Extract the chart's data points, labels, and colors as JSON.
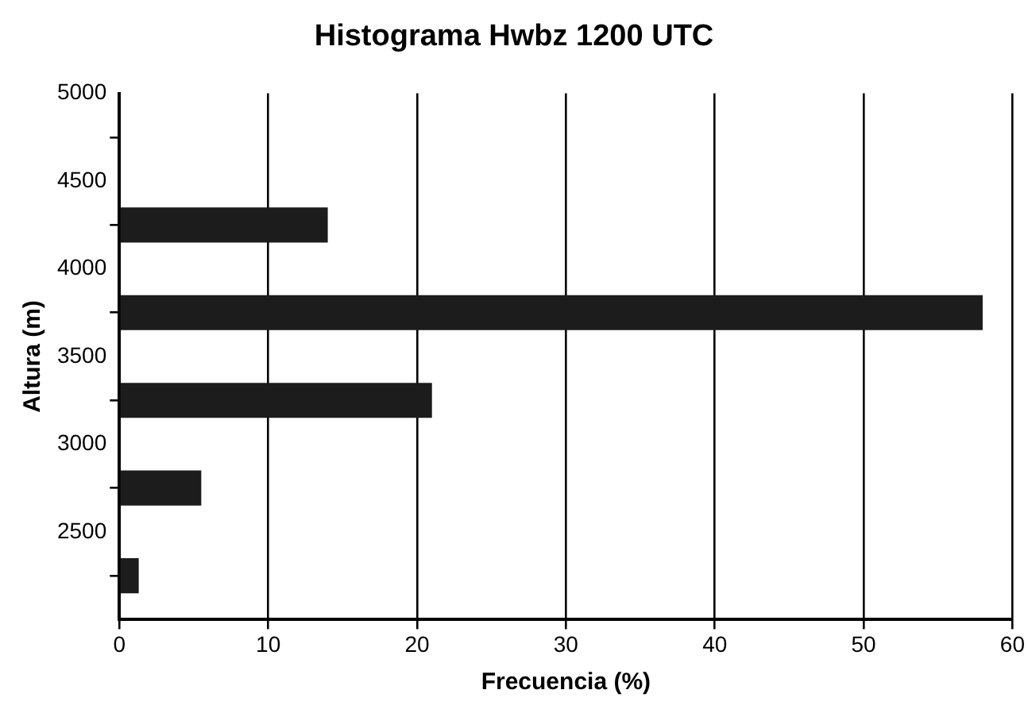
{
  "chart_data": {
    "type": "histogram",
    "orientation": "horizontal",
    "title": "Histograma Hwbz 1200 UTC",
    "xlabel": "Frecuencia (%)",
    "ylabel": "Altura (m)",
    "bins": [
      2000,
      2500,
      3000,
      3500,
      4000,
      4500
    ],
    "values": [
      1.3,
      5.5,
      21,
      58,
      14
    ],
    "color": "#1c1c1c",
    "xlim": [
      0,
      60
    ],
    "xticks": [
      0,
      10,
      20,
      30,
      40,
      50,
      60
    ],
    "ylim": [
      2000,
      5000
    ],
    "yticks": [
      {
        "value": 2000,
        "label": null
      },
      2500,
      3000,
      3500,
      4000,
      4500,
      5000
    ],
    "grid": "x",
    "legend": false
  }
}
